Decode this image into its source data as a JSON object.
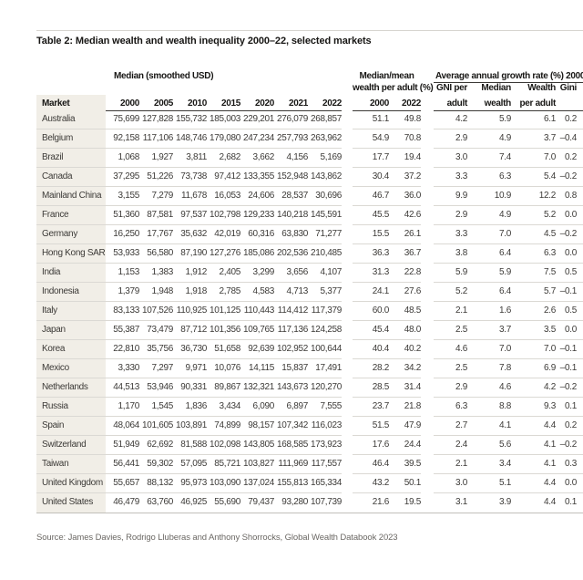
{
  "page": {
    "title": "Table 2: Median wealth and wealth inequality 2000–22, selected markets",
    "source": "Source: James Davies, Rodrigo Lluberas and Anthony Shorrocks, Global Wealth Databook 2023"
  },
  "colors": {
    "market_column_bg": "#f1eee7",
    "header_rule": "#3b3936",
    "row_rule": "#dbd9d4",
    "bottom_rule": "#c1bfba",
    "top_rule": "#d7d5d0"
  },
  "table": {
    "group_headers": {
      "median": "Median (smoothed USD)",
      "median_mean_line1": "Median/mean",
      "median_mean_line2": "wealth per adult (%)",
      "growth": "Average annual growth rate (%) 2000–22"
    },
    "market_header": "Market",
    "median_years": [
      "2000",
      "2005",
      "2010",
      "2015",
      "2020",
      "2021",
      "2022"
    ],
    "median_mean_years": [
      "2000",
      "2022"
    ],
    "growth_subheaders_line1": [
      "GNI per",
      "Median",
      "Wealth",
      "Gini"
    ],
    "growth_subheaders_line2": [
      "adult",
      "wealth",
      "per adult",
      ""
    ],
    "rows": [
      {
        "market": "Australia",
        "median": [
          "75,699",
          "127,828",
          "155,732",
          "185,003",
          "229,201",
          "276,079",
          "268,857"
        ],
        "median_mean": [
          "51.1",
          "49.8"
        ],
        "growth": [
          "4.2",
          "5.9",
          "6.1",
          "0.2"
        ]
      },
      {
        "market": "Belgium",
        "median": [
          "92,158",
          "117,106",
          "148,746",
          "179,080",
          "247,234",
          "257,793",
          "263,962"
        ],
        "median_mean": [
          "54.9",
          "70.8"
        ],
        "growth": [
          "2.9",
          "4.9",
          "3.7",
          "–0.4"
        ]
      },
      {
        "market": "Brazil",
        "median": [
          "1,068",
          "1,927",
          "3,811",
          "2,682",
          "3,662",
          "4,156",
          "5,169"
        ],
        "median_mean": [
          "17.7",
          "19.4"
        ],
        "growth": [
          "3.0",
          "7.4",
          "7.0",
          "0.2"
        ]
      },
      {
        "market": "Canada",
        "median": [
          "37,295",
          "51,226",
          "73,738",
          "97,412",
          "133,355",
          "152,948",
          "143,862"
        ],
        "median_mean": [
          "30.4",
          "37.2"
        ],
        "growth": [
          "3.3",
          "6.3",
          "5.4",
          "–0.2"
        ]
      },
      {
        "market": "Mainland China",
        "median": [
          "3,155",
          "7,279",
          "11,678",
          "16,053",
          "24,606",
          "28,537",
          "30,696"
        ],
        "median_mean": [
          "46.7",
          "36.0"
        ],
        "growth": [
          "9.9",
          "10.9",
          "12.2",
          "0.8"
        ]
      },
      {
        "market": "France",
        "median": [
          "51,360",
          "87,581",
          "97,537",
          "102,798",
          "129,233",
          "140,218",
          "145,591"
        ],
        "median_mean": [
          "45.5",
          "42.6"
        ],
        "growth": [
          "2.9",
          "4.9",
          "5.2",
          "0.0"
        ]
      },
      {
        "market": "Germany",
        "median": [
          "16,250",
          "17,767",
          "35,632",
          "42,019",
          "60,316",
          "63,830",
          "71,277"
        ],
        "median_mean": [
          "15.5",
          "26.1"
        ],
        "growth": [
          "3.3",
          "7.0",
          "4.5",
          "–0.2"
        ]
      },
      {
        "market": "Hong Kong SAR",
        "median": [
          "53,933",
          "56,580",
          "87,190",
          "127,276",
          "185,086",
          "202,536",
          "210,485"
        ],
        "median_mean": [
          "36.3",
          "36.7"
        ],
        "growth": [
          "3.8",
          "6.4",
          "6.3",
          "0.0"
        ]
      },
      {
        "market": "India",
        "median": [
          "1,153",
          "1,383",
          "1,912",
          "2,405",
          "3,299",
          "3,656",
          "4,107"
        ],
        "median_mean": [
          "31.3",
          "22.8"
        ],
        "growth": [
          "5.9",
          "5.9",
          "7.5",
          "0.5"
        ]
      },
      {
        "market": "Indonesia",
        "median": [
          "1,379",
          "1,948",
          "1,918",
          "2,785",
          "4,583",
          "4,713",
          "5,377"
        ],
        "median_mean": [
          "24.1",
          "27.6"
        ],
        "growth": [
          "5.2",
          "6.4",
          "5.7",
          "–0.1"
        ]
      },
      {
        "market": "Italy",
        "median": [
          "83,133",
          "107,526",
          "110,925",
          "101,125",
          "110,443",
          "114,412",
          "117,379"
        ],
        "median_mean": [
          "60.0",
          "48.5"
        ],
        "growth": [
          "2.1",
          "1.6",
          "2.6",
          "0.5"
        ]
      },
      {
        "market": "Japan",
        "median": [
          "55,387",
          "73,479",
          "87,712",
          "101,356",
          "109,765",
          "117,136",
          "124,258"
        ],
        "median_mean": [
          "45.4",
          "48.0"
        ],
        "growth": [
          "2.5",
          "3.7",
          "3.5",
          "0.0"
        ]
      },
      {
        "market": "Korea",
        "median": [
          "22,810",
          "35,756",
          "36,730",
          "51,658",
          "92,639",
          "102,952",
          "100,644"
        ],
        "median_mean": [
          "40.4",
          "40.2"
        ],
        "growth": [
          "4.6",
          "7.0",
          "7.0",
          "–0.1"
        ]
      },
      {
        "market": "Mexico",
        "median": [
          "3,330",
          "7,297",
          "9,971",
          "10,076",
          "14,115",
          "15,837",
          "17,491"
        ],
        "median_mean": [
          "28.2",
          "34.2"
        ],
        "growth": [
          "2.5",
          "7.8",
          "6.9",
          "–0.1"
        ]
      },
      {
        "market": "Netherlands",
        "median": [
          "44,513",
          "53,946",
          "90,331",
          "89,867",
          "132,321",
          "143,673",
          "120,270"
        ],
        "median_mean": [
          "28.5",
          "31.4"
        ],
        "growth": [
          "2.9",
          "4.6",
          "4.2",
          "–0.2"
        ]
      },
      {
        "market": "Russia",
        "median": [
          "1,170",
          "1,545",
          "1,836",
          "3,434",
          "6,090",
          "6,897",
          "7,555"
        ],
        "median_mean": [
          "23.7",
          "21.8"
        ],
        "growth": [
          "6.3",
          "8.8",
          "9.3",
          "0.1"
        ]
      },
      {
        "market": "Spain",
        "median": [
          "48,064",
          "101,605",
          "103,891",
          "74,899",
          "98,157",
          "107,342",
          "116,023"
        ],
        "median_mean": [
          "51.5",
          "47.9"
        ],
        "growth": [
          "2.7",
          "4.1",
          "4.4",
          "0.2"
        ]
      },
      {
        "market": "Switzerland",
        "median": [
          "51,949",
          "62,692",
          "81,588",
          "102,098",
          "143,805",
          "168,585",
          "173,923"
        ],
        "median_mean": [
          "17.6",
          "24.4"
        ],
        "growth": [
          "2.4",
          "5.6",
          "4.1",
          "–0.2"
        ]
      },
      {
        "market": "Taiwan",
        "median": [
          "56,441",
          "59,302",
          "57,095",
          "85,721",
          "103,827",
          "111,969",
          "117,557"
        ],
        "median_mean": [
          "46.4",
          "39.5"
        ],
        "growth": [
          "2.1",
          "3.4",
          "4.1",
          "0.3"
        ]
      },
      {
        "market": "United Kingdom",
        "median": [
          "55,657",
          "88,132",
          "95,973",
          "103,090",
          "137,024",
          "155,813",
          "165,334"
        ],
        "median_mean": [
          "43.2",
          "50.1"
        ],
        "growth": [
          "3.0",
          "5.1",
          "4.4",
          "0.0"
        ]
      },
      {
        "market": "United States",
        "median": [
          "46,479",
          "63,760",
          "46,925",
          "55,690",
          "79,437",
          "93,280",
          "107,739"
        ],
        "median_mean": [
          "21.6",
          "19.5"
        ],
        "growth": [
          "3.1",
          "3.9",
          "4.4",
          "0.1"
        ]
      }
    ]
  }
}
